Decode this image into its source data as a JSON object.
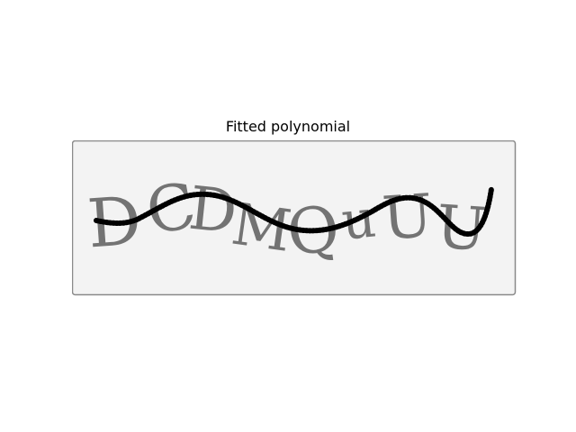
{
  "figure": {
    "title": "Fitted polynomial",
    "captcha_text": "DCDMQuUU",
    "colors": {
      "background": "#ffffff",
      "image_background": "#f3f3f3",
      "image_border": "#8a8a8a",
      "glyph_fill": "#5c5c5c",
      "curve": "#000000"
    }
  }
}
